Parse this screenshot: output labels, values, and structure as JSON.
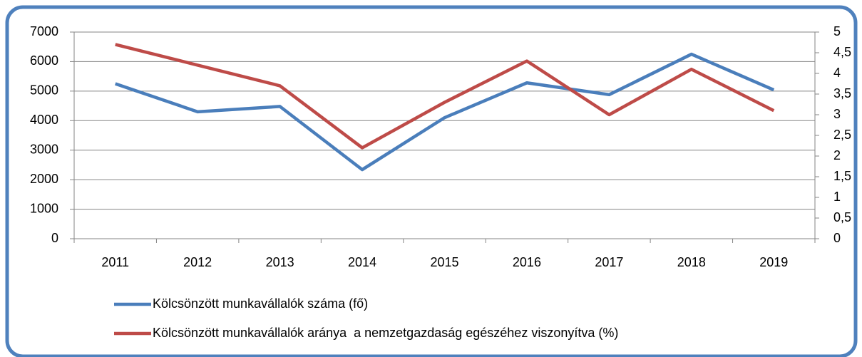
{
  "chart_data": {
    "type": "line",
    "categories": [
      "2011",
      "2012",
      "2013",
      "2014",
      "2015",
      "2016",
      "2017",
      "2018",
      "2019"
    ],
    "series": [
      {
        "name": "Kölcsönzött munkavállalók száma (fő)",
        "color": "#4a7ebb",
        "values": [
          5250,
          4300,
          4480,
          2340,
          4100,
          5280,
          4880,
          6250,
          5040
        ]
      },
      {
        "name": "Kölcsönzött munkavállalók aránya  a nemzetgazdaság egészéhez viszonyítva (%)",
        "color": "#be4b48",
        "axis": "y2",
        "values": [
          4.7,
          4.2,
          3.7,
          2.2,
          3.3,
          4.3,
          3.0,
          4.1,
          3.1
        ]
      }
    ],
    "ylim": [
      0,
      7000
    ],
    "yticks": [
      0,
      1000,
      2000,
      3000,
      4000,
      5000,
      6000,
      7000
    ],
    "y2lim": [
      0,
      5
    ],
    "y2ticks": [
      0,
      {
        "value": 0.5,
        "label": "0,5"
      },
      1,
      {
        "value": 1.5,
        "label": "1,5"
      },
      2,
      {
        "value": 2.5,
        "label": "2,5"
      },
      3,
      {
        "value": 3.5,
        "label": "3,5"
      },
      4,
      {
        "value": 4.5,
        "label": "4,5"
      },
      5
    ],
    "grid": true,
    "legend": "bottom"
  }
}
